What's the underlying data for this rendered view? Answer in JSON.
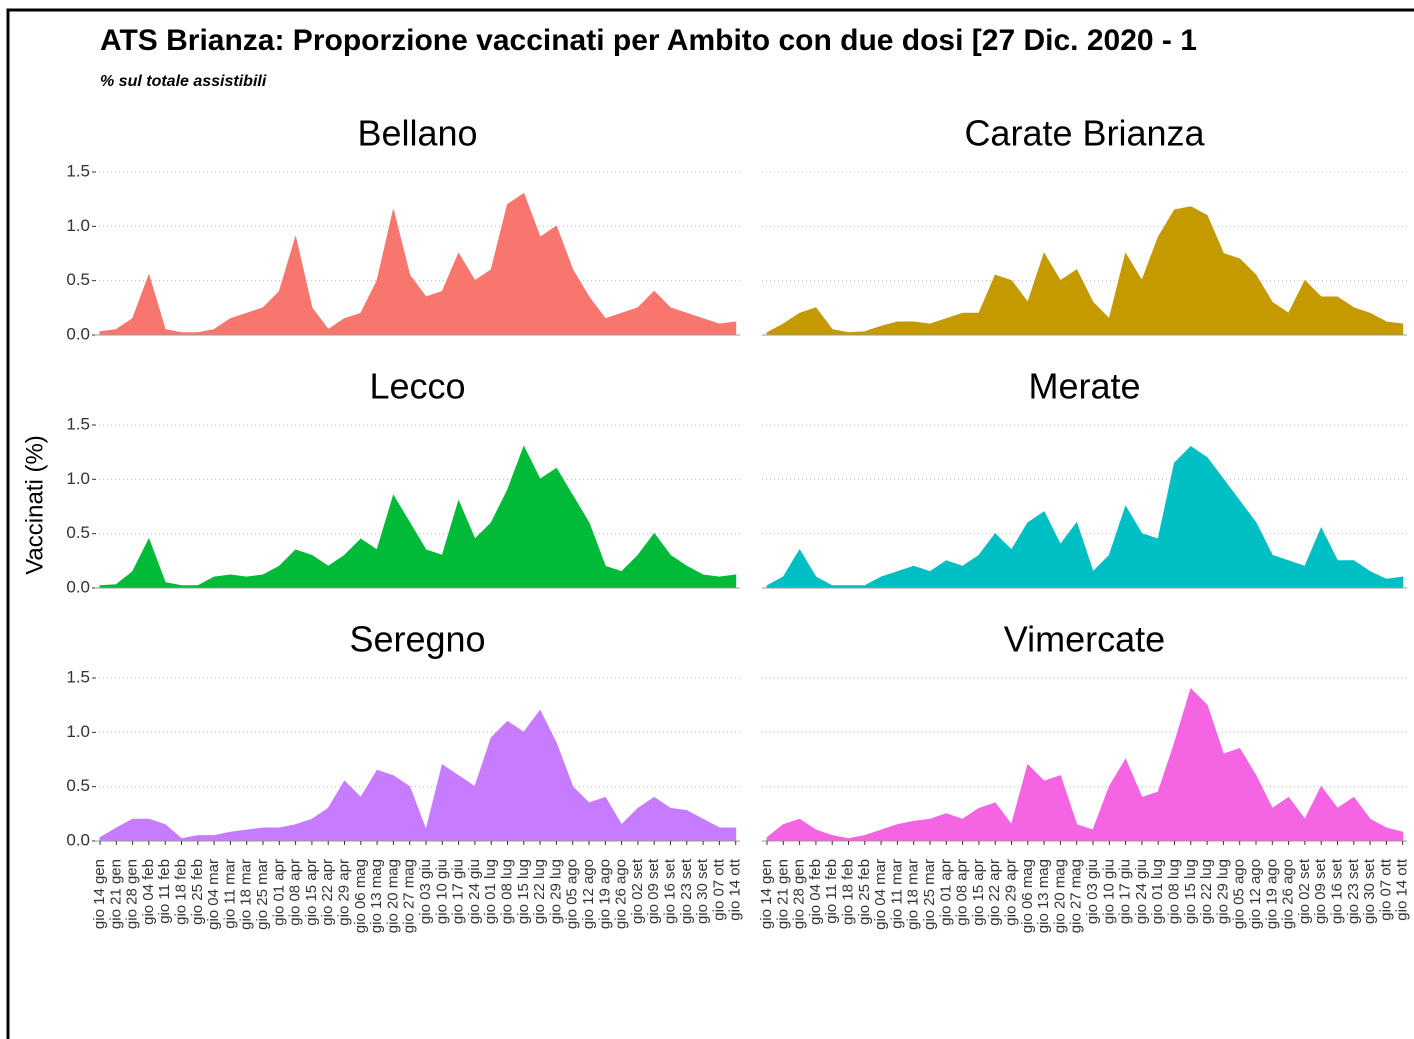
{
  "chart_data": {
    "type": "area",
    "title": "ATS Brianza: Proporzione vaccinati per Ambito con due dosi [27 Dic. 2020 - 1",
    "subtitle": "% sul totale assistibili",
    "ylabel": "Vaccinati (%)",
    "facet_columns": 2,
    "grid": true,
    "categories": [
      "gio 14 gen",
      "gio 21 gen",
      "gio 28 gen",
      "gio 04 feb",
      "gio 11 feb",
      "gio 18 feb",
      "gio 25 feb",
      "gio 04 mar",
      "gio 11 mar",
      "gio 18 mar",
      "gio 25 mar",
      "gio 01 apr",
      "gio 08 apr",
      "gio 15 apr",
      "gio 22 apr",
      "gio 29 apr",
      "gio 06 mag",
      "gio 13 mag",
      "gio 20 mag",
      "gio 27 mag",
      "gio 03 giu",
      "gio 10 giu",
      "gio 17 giu",
      "gio 24 giu",
      "gio 01 lug",
      "gio 08 lug",
      "gio 15 lug",
      "gio 22 lug",
      "gio 29 lug",
      "gio 05 ago",
      "gio 12 ago",
      "gio 19 ago",
      "gio 26 ago",
      "gio 02 set",
      "gio 09 set",
      "gio 16 set",
      "gio 23 set",
      "gio 30 set",
      "gio 07 ott",
      "gio 14 ott"
    ],
    "ylim": [
      -0.05,
      1.55
    ],
    "yticks": [
      {
        "value": 0,
        "label": "0.0"
      },
      {
        "value": 0.5,
        "label": "0.5"
      },
      {
        "value": 1,
        "label": "1.0"
      },
      {
        "value": 1.5,
        "label": "1.5"
      }
    ],
    "series": [
      {
        "name": "Bellano",
        "color": "#f8766d",
        "values": [
          0.03,
          0.05,
          0.15,
          0.55,
          0.05,
          0.02,
          0.02,
          0.05,
          0.15,
          0.2,
          0.25,
          0.4,
          0.9,
          0.25,
          0.05,
          0.15,
          0.2,
          0.5,
          1.15,
          0.55,
          0.35,
          0.4,
          0.75,
          0.5,
          0.6,
          1.2,
          1.3,
          0.9,
          1.0,
          0.6,
          0.35,
          0.15,
          0.2,
          0.25,
          0.4,
          0.25,
          0.2,
          0.15,
          0.1,
          0.12
        ]
      },
      {
        "name": "Carate Brianza",
        "color": "#c49a00",
        "values": [
          0.02,
          0.1,
          0.2,
          0.25,
          0.05,
          0.02,
          0.03,
          0.08,
          0.12,
          0.12,
          0.1,
          0.15,
          0.2,
          0.2,
          0.55,
          0.5,
          0.3,
          0.75,
          0.5,
          0.6,
          0.3,
          0.15,
          0.75,
          0.5,
          0.9,
          1.15,
          1.18,
          1.1,
          0.75,
          0.7,
          0.55,
          0.3,
          0.2,
          0.5,
          0.35,
          0.35,
          0.25,
          0.2,
          0.12,
          0.1
        ]
      },
      {
        "name": "Lecco",
        "color": "#00ba38",
        "values": [
          0.02,
          0.03,
          0.15,
          0.45,
          0.05,
          0.02,
          0.02,
          0.1,
          0.12,
          0.1,
          0.12,
          0.2,
          0.35,
          0.3,
          0.2,
          0.3,
          0.45,
          0.35,
          0.85,
          0.6,
          0.35,
          0.3,
          0.8,
          0.45,
          0.6,
          0.9,
          1.3,
          1.0,
          1.1,
          0.85,
          0.6,
          0.2,
          0.15,
          0.3,
          0.5,
          0.3,
          0.2,
          0.12,
          0.1,
          0.12
        ]
      },
      {
        "name": "Merate",
        "color": "#00bfc4",
        "values": [
          0.02,
          0.1,
          0.35,
          0.1,
          0.02,
          0.02,
          0.02,
          0.1,
          0.15,
          0.2,
          0.15,
          0.25,
          0.2,
          0.3,
          0.5,
          0.35,
          0.6,
          0.7,
          0.4,
          0.6,
          0.15,
          0.3,
          0.75,
          0.5,
          0.45,
          1.15,
          1.3,
          1.2,
          1.0,
          0.8,
          0.6,
          0.3,
          0.25,
          0.2,
          0.55,
          0.25,
          0.25,
          0.15,
          0.08,
          0.1
        ]
      },
      {
        "name": "Seregno",
        "color": "#c77cff",
        "values": [
          0.03,
          0.12,
          0.2,
          0.2,
          0.15,
          0.02,
          0.05,
          0.05,
          0.08,
          0.1,
          0.12,
          0.12,
          0.15,
          0.2,
          0.3,
          0.55,
          0.4,
          0.65,
          0.6,
          0.5,
          0.1,
          0.7,
          0.6,
          0.5,
          0.95,
          1.1,
          1.0,
          1.2,
          0.9,
          0.5,
          0.35,
          0.4,
          0.15,
          0.3,
          0.4,
          0.3,
          0.28,
          0.2,
          0.12,
          0.12
        ]
      },
      {
        "name": "Vimercate",
        "color": "#f564e3",
        "values": [
          0.03,
          0.15,
          0.2,
          0.1,
          0.05,
          0.02,
          0.05,
          0.1,
          0.15,
          0.18,
          0.2,
          0.25,
          0.2,
          0.3,
          0.35,
          0.15,
          0.7,
          0.55,
          0.6,
          0.15,
          0.1,
          0.5,
          0.75,
          0.4,
          0.45,
          0.9,
          1.4,
          1.25,
          0.8,
          0.85,
          0.6,
          0.3,
          0.4,
          0.2,
          0.5,
          0.3,
          0.4,
          0.2,
          0.12,
          0.08
        ]
      }
    ]
  }
}
